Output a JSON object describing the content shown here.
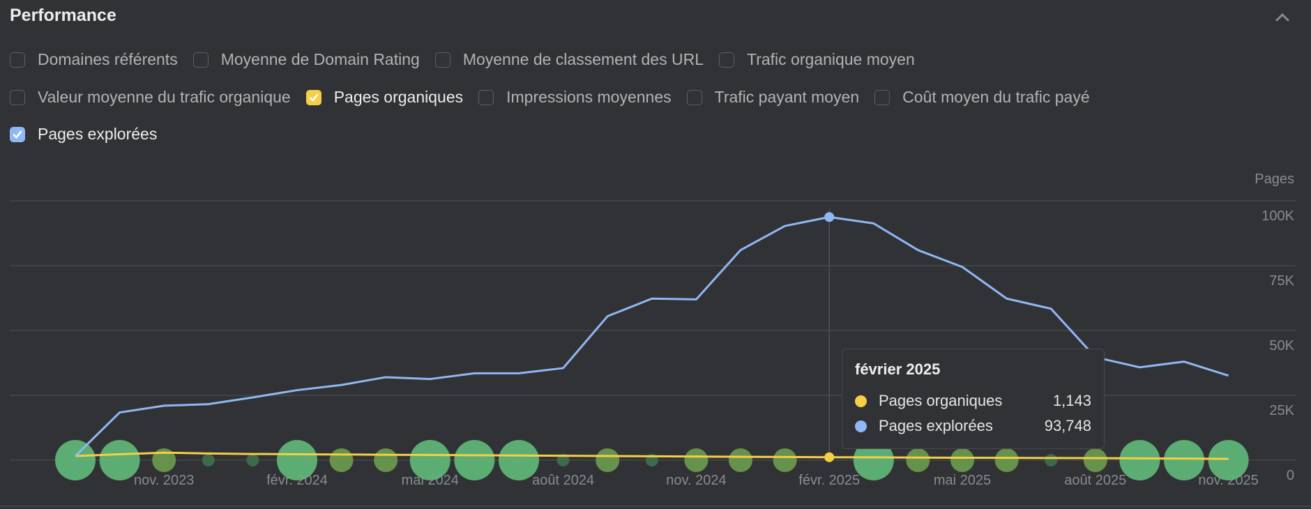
{
  "header": {
    "title": "Performance",
    "collapse_icon": "chevron-up-icon"
  },
  "metrics": [
    [
      {
        "label": "Domaines référents",
        "checked": false
      },
      {
        "label": "Moyenne de Domain Rating",
        "checked": false
      },
      {
        "label": "Moyenne de classement des URL",
        "checked": false
      },
      {
        "label": "Trafic organique moyen",
        "checked": false
      }
    ],
    [
      {
        "label": "Valeur moyenne du trafic organique",
        "checked": false
      },
      {
        "label": "Pages organiques",
        "checked": true,
        "color": "#f5cf45"
      },
      {
        "label": "Impressions moyennes",
        "checked": false
      },
      {
        "label": "Trafic payant moyen",
        "checked": false
      },
      {
        "label": "Coût moyen du trafic payé",
        "checked": false
      }
    ],
    [
      {
        "label": "Pages explorées",
        "checked": true,
        "color": "#8fb8f5"
      }
    ]
  ],
  "chart_data": {
    "type": "line",
    "ylabel": "Pages",
    "ylim": [
      0,
      100000
    ],
    "yticks": [
      "0",
      "25K",
      "50K",
      "75K",
      "100K"
    ],
    "xtick_labels": [
      "nov. 2023",
      "févr. 2024",
      "mai 2024",
      "août 2024",
      "nov. 2024",
      "févr. 2025",
      "mai 2025",
      "août 2025",
      "nov. 2025"
    ],
    "x": [
      "2023-09",
      "2023-10",
      "2023-11",
      "2023-12",
      "2024-01",
      "2024-02",
      "2024-03",
      "2024-04",
      "2024-05",
      "2024-06",
      "2024-07",
      "2024-08",
      "2024-09",
      "2024-10",
      "2024-11",
      "2024-12",
      "2025-01",
      "2025-02",
      "2025-03",
      "2025-04",
      "2025-05",
      "2025-06",
      "2025-07",
      "2025-08",
      "2025-09",
      "2025-10",
      "2025-11"
    ],
    "grid": true,
    "series": [
      {
        "name": "Pages organiques",
        "color": "#f5cf45",
        "values": [
          1600,
          2300,
          2900,
          2600,
          2400,
          2300,
          2200,
          2100,
          2000,
          1900,
          1800,
          1700,
          1600,
          1500,
          1400,
          1300,
          1250,
          1143,
          1100,
          1000,
          950,
          900,
          850,
          800,
          700,
          650,
          500
        ]
      },
      {
        "name": "Pages explorées",
        "color": "#8fb8f5",
        "values": [
          1600,
          18400,
          21000,
          21600,
          24200,
          27000,
          29000,
          32000,
          31300,
          33500,
          33500,
          35500,
          55500,
          62300,
          62000,
          81000,
          90300,
          93748,
          91300,
          81000,
          74500,
          62300,
          58400,
          39700,
          35800,
          38000,
          32600
        ]
      }
    ],
    "events": {
      "color_large": "#5fb77a",
      "color_medium": "#6a9a4e",
      "color_small": "#3f6e4c",
      "sizes": [
        3,
        3,
        2,
        1,
        1,
        3,
        2,
        2,
        3,
        3,
        3,
        1,
        2,
        1,
        2,
        2,
        2,
        0,
        3,
        2,
        2,
        2,
        1,
        2,
        3,
        3,
        3
      ]
    },
    "tooltip": {
      "title": "février 2025",
      "rows": [
        {
          "name": "Pages organiques",
          "value": "1,143",
          "color": "#f5cf45"
        },
        {
          "name": "Pages explorées",
          "value": "93,748",
          "color": "#8fb8f5"
        }
      ],
      "index": 17
    }
  }
}
